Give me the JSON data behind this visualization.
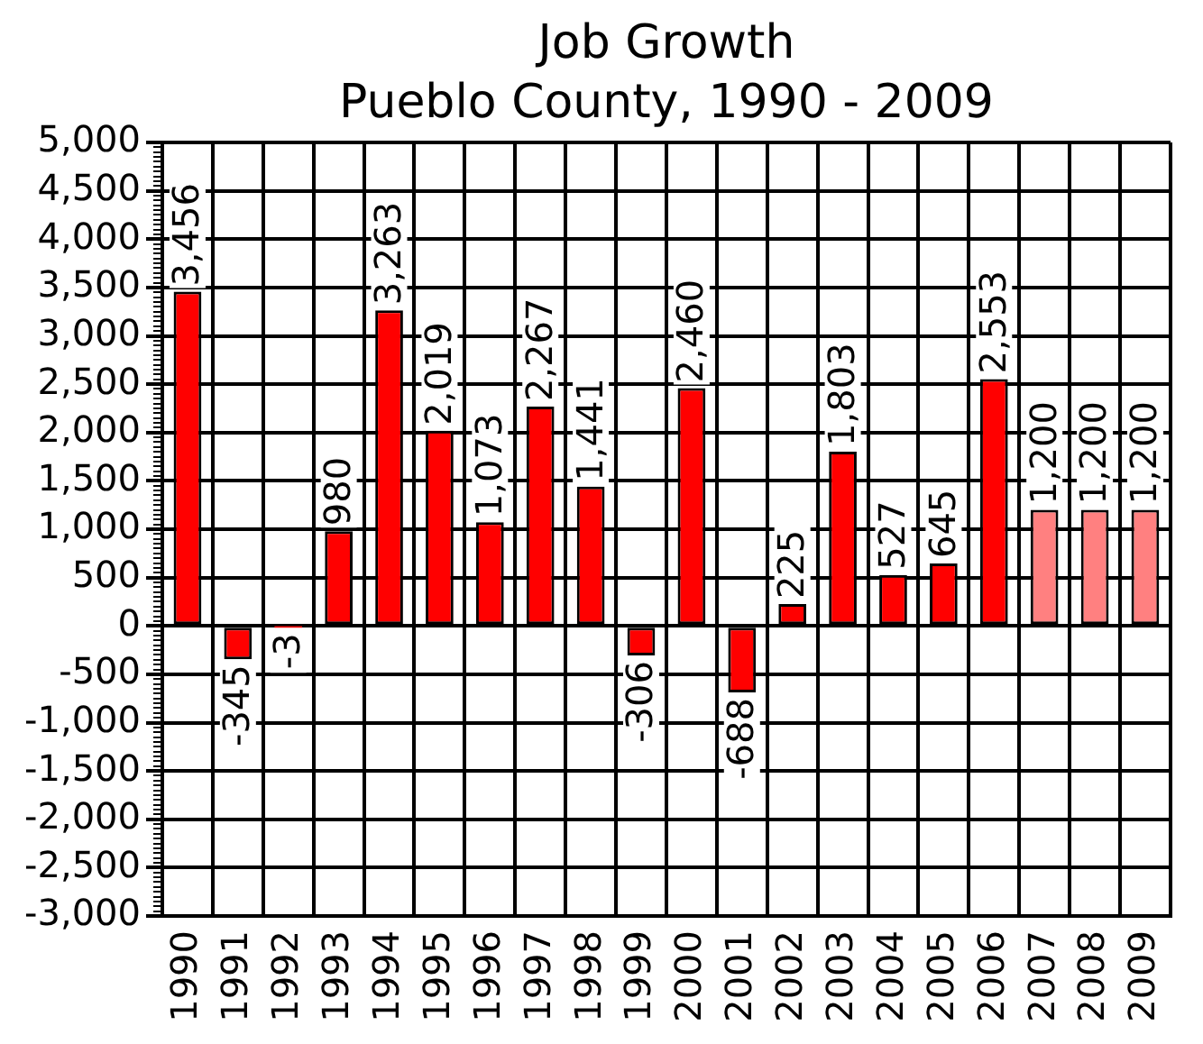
{
  "chart_data": {
    "type": "bar",
    "title": "Job Growth",
    "subtitle": "Pueblo County, 1990 - 2009",
    "categories": [
      "1990",
      "1991",
      "1992",
      "1993",
      "1994",
      "1995",
      "1996",
      "1997",
      "1998",
      "1999",
      "2000",
      "2001",
      "2002",
      "2003",
      "2004",
      "2005",
      "2006",
      "2007",
      "2008",
      "2009"
    ],
    "values": [
      3456,
      -345,
      -3,
      980,
      3263,
      2019,
      1073,
      2267,
      1441,
      -306,
      2460,
      -688,
      225,
      1803,
      527,
      645,
      2553,
      1200,
      1200,
      1200
    ],
    "value_labels": [
      "3,456",
      "-345",
      "-3",
      "980",
      "3,263",
      "2,019",
      "1,073",
      "2,267",
      "1,441",
      "-306",
      "2,460",
      "-688",
      "225",
      "1,803",
      "527",
      "645",
      "2,553",
      "1,200",
      "1,200",
      "1,200"
    ],
    "colors": [
      "#ff0000",
      "#ff0000",
      "#ff0000",
      "#ff0000",
      "#ff0000",
      "#ff0000",
      "#ff0000",
      "#ff0000",
      "#ff0000",
      "#ff0000",
      "#ff0000",
      "#ff0000",
      "#ff0000",
      "#ff0000",
      "#ff0000",
      "#ff0000",
      "#ff0000",
      "#ff8080",
      "#ff8080",
      "#ff8080"
    ],
    "ylim": [
      -3000,
      5000
    ],
    "yticks": [
      {
        "value": -3000,
        "label": "-3,000"
      },
      {
        "value": -2950,
        "label": null
      },
      {
        "value": -2900,
        "label": null
      },
      {
        "value": -2850,
        "label": null
      },
      {
        "value": -2800,
        "label": null
      },
      {
        "value": -2750,
        "label": null
      },
      {
        "value": -2700,
        "label": null
      },
      {
        "value": -2650,
        "label": null
      },
      {
        "value": -2600,
        "label": null
      },
      {
        "value": -2550,
        "label": null
      },
      {
        "value": -2500,
        "label": "-2,500"
      },
      {
        "value": -2450,
        "label": null
      },
      {
        "value": -2400,
        "label": null
      },
      {
        "value": -2350,
        "label": null
      },
      {
        "value": -2300,
        "label": null
      },
      {
        "value": -2250,
        "label": null
      },
      {
        "value": -2200,
        "label": null
      },
      {
        "value": -2150,
        "label": null
      },
      {
        "value": -2100,
        "label": null
      },
      {
        "value": -2050,
        "label": null
      },
      {
        "value": -2000,
        "label": "-2,000"
      },
      {
        "value": -1950,
        "label": null
      },
      {
        "value": -1900,
        "label": null
      },
      {
        "value": -1850,
        "label": null
      },
      {
        "value": -1800,
        "label": null
      },
      {
        "value": -1750,
        "label": null
      },
      {
        "value": -1700,
        "label": null
      },
      {
        "value": -1650,
        "label": null
      },
      {
        "value": -1600,
        "label": null
      },
      {
        "value": -1550,
        "label": null
      },
      {
        "value": -1500,
        "label": "-1,500"
      },
      {
        "value": -1450,
        "label": null
      },
      {
        "value": -1400,
        "label": null
      },
      {
        "value": -1350,
        "label": null
      },
      {
        "value": -1300,
        "label": null
      },
      {
        "value": -1250,
        "label": null
      },
      {
        "value": -1200,
        "label": null
      },
      {
        "value": -1150,
        "label": null
      },
      {
        "value": -1100,
        "label": null
      },
      {
        "value": -1050,
        "label": null
      },
      {
        "value": -1000,
        "label": "-1,000"
      },
      {
        "value": -950,
        "label": null
      },
      {
        "value": -900,
        "label": null
      },
      {
        "value": -850,
        "label": null
      },
      {
        "value": -800,
        "label": null
      },
      {
        "value": -750,
        "label": null
      },
      {
        "value": -700,
        "label": null
      },
      {
        "value": -650,
        "label": null
      },
      {
        "value": -600,
        "label": null
      },
      {
        "value": -550,
        "label": null
      },
      {
        "value": -500,
        "label": "-500"
      },
      {
        "value": -450,
        "label": null
      },
      {
        "value": -400,
        "label": null
      },
      {
        "value": -350,
        "label": null
      },
      {
        "value": -300,
        "label": null
      },
      {
        "value": -250,
        "label": null
      },
      {
        "value": -200,
        "label": null
      },
      {
        "value": -150,
        "label": null
      },
      {
        "value": -100,
        "label": null
      },
      {
        "value": -50,
        "label": null
      },
      0,
      {
        "value": 50,
        "label": null
      },
      {
        "value": 100,
        "label": null
      },
      {
        "value": 150,
        "label": null
      },
      {
        "value": 200,
        "label": null
      },
      {
        "value": 250,
        "label": null
      },
      {
        "value": 300,
        "label": null
      },
      {
        "value": 350,
        "label": null
      },
      {
        "value": 400,
        "label": null
      },
      {
        "value": 450,
        "label": null
      },
      500,
      {
        "value": 550,
        "label": null
      },
      {
        "value": 600,
        "label": null
      },
      {
        "value": 650,
        "label": null
      },
      {
        "value": 700,
        "label": null
      },
      {
        "value": 750,
        "label": null
      },
      {
        "value": 800,
        "label": null
      },
      {
        "value": 850,
        "label": null
      },
      {
        "value": 900,
        "label": null
      },
      {
        "value": 950,
        "label": null
      },
      {
        "value": 1000,
        "label": "1,000"
      },
      {
        "value": 1050,
        "label": null
      },
      {
        "value": 1100,
        "label": null
      },
      {
        "value": 1150,
        "label": null
      },
      {
        "value": 1200,
        "label": null
      },
      {
        "value": 1250,
        "label": null
      },
      {
        "value": 1300,
        "label": null
      },
      {
        "value": 1350,
        "label": null
      },
      {
        "value": 1400,
        "label": null
      },
      {
        "value": 1450,
        "label": null
      },
      {
        "value": 1500,
        "label": "1,500"
      },
      {
        "value": 1550,
        "label": null
      },
      {
        "value": 1600,
        "label": null
      },
      {
        "value": 1650,
        "label": null
      },
      {
        "value": 1700,
        "label": null
      },
      {
        "value": 1750,
        "label": null
      },
      {
        "value": 1800,
        "label": null
      },
      {
        "value": 1850,
        "label": null
      },
      {
        "value": 1900,
        "label": null
      },
      {
        "value": 1950,
        "label": null
      },
      {
        "value": 2000,
        "label": "2,000"
      },
      {
        "value": 2050,
        "label": null
      },
      {
        "value": 2100,
        "label": null
      },
      {
        "value": 2150,
        "label": null
      },
      {
        "value": 2200,
        "label": null
      },
      {
        "value": 2250,
        "label": null
      },
      {
        "value": 2300,
        "label": null
      },
      {
        "value": 2350,
        "label": null
      },
      {
        "value": 2400,
        "label": null
      },
      {
        "value": 2450,
        "label": null
      },
      {
        "value": 2500,
        "label": "2,500"
      },
      {
        "value": 2550,
        "label": null
      },
      {
        "value": 2600,
        "label": null
      },
      {
        "value": 2650,
        "label": null
      },
      {
        "value": 2700,
        "label": null
      },
      {
        "value": 2750,
        "label": null
      },
      {
        "value": 2800,
        "label": null
      },
      {
        "value": 2850,
        "label": null
      },
      {
        "value": 2900,
        "label": null
      },
      {
        "value": 2950,
        "label": null
      },
      {
        "value": 3000,
        "label": "3,000"
      },
      {
        "value": 3050,
        "label": null
      },
      {
        "value": 3100,
        "label": null
      },
      {
        "value": 3150,
        "label": null
      },
      {
        "value": 3200,
        "label": null
      },
      {
        "value": 3250,
        "label": null
      },
      {
        "value": 3300,
        "label": null
      },
      {
        "value": 3350,
        "label": null
      },
      {
        "value": 3400,
        "label": null
      },
      {
        "value": 3450,
        "label": null
      },
      {
        "value": 3500,
        "label": "3,500"
      },
      {
        "value": 3550,
        "label": null
      },
      {
        "value": 3600,
        "label": null
      },
      {
        "value": 3650,
        "label": null
      },
      {
        "value": 3700,
        "label": null
      },
      {
        "value": 3750,
        "label": null
      },
      {
        "value": 3800,
        "label": null
      },
      {
        "value": 3850,
        "label": null
      },
      {
        "value": 3900,
        "label": null
      },
      {
        "value": 3950,
        "label": null
      },
      {
        "value": 4000,
        "label": "4,000"
      },
      {
        "value": 4050,
        "label": null
      },
      {
        "value": 4100,
        "label": null
      },
      {
        "value": 4150,
        "label": null
      },
      {
        "value": 4200,
        "label": null
      },
      {
        "value": 4250,
        "label": null
      },
      {
        "value": 4300,
        "label": null
      },
      {
        "value": 4350,
        "label": null
      },
      {
        "value": 4400,
        "label": null
      },
      {
        "value": 4450,
        "label": null
      },
      {
        "value": 4500,
        "label": "4,500"
      },
      {
        "value": 4550,
        "label": null
      },
      {
        "value": 4600,
        "label": null
      },
      {
        "value": 4650,
        "label": null
      },
      {
        "value": 4700,
        "label": null
      },
      {
        "value": 4750,
        "label": null
      },
      {
        "value": 4800,
        "label": null
      },
      {
        "value": 4850,
        "label": null
      },
      {
        "value": 4900,
        "label": null
      },
      {
        "value": 4950,
        "label": null
      },
      {
        "value": 5000,
        "label": "5,000"
      }
    ],
    "grid": true
  }
}
